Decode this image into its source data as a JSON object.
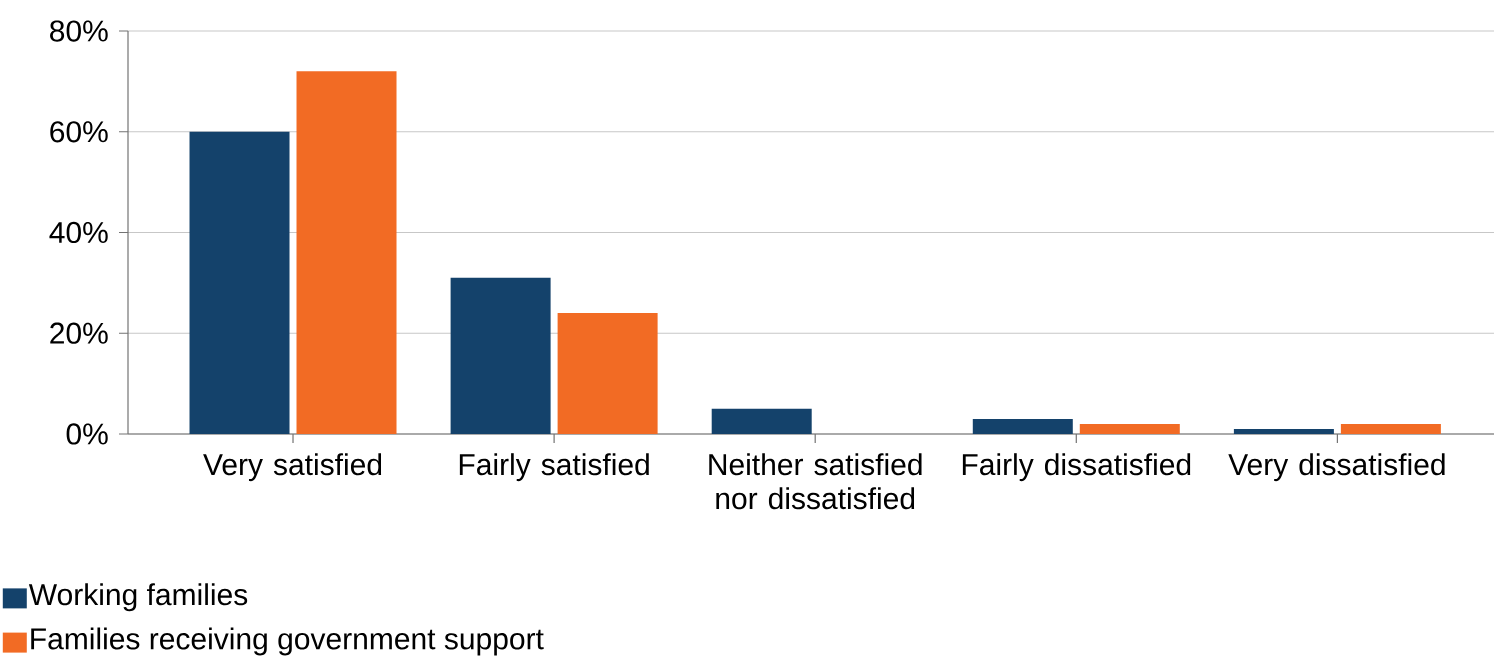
{
  "chart_data": {
    "type": "bar",
    "categories": [
      "Very satisfied",
      "Fairly satisfied",
      "Neither satisfied nor dissatisfied",
      "Fairly dissatisfied",
      "Very dissatisfied"
    ],
    "series": [
      {
        "name": "Working families",
        "color": "#14426b",
        "values": [
          60,
          31,
          5,
          3,
          1
        ]
      },
      {
        "name": "Families receiving government support",
        "color": "#f26b24",
        "values": [
          72,
          24,
          0,
          2,
          2
        ]
      }
    ],
    "ylim": [
      0,
      80
    ],
    "yticks": [
      {
        "value": 0,
        "label": "0%"
      },
      {
        "value": 20,
        "label": "20%"
      },
      {
        "value": 40,
        "label": "40%"
      },
      {
        "value": 60,
        "label": "60%"
      },
      {
        "value": 80,
        "label": "80%"
      }
    ],
    "grid": "y",
    "legend": "bottom left"
  }
}
